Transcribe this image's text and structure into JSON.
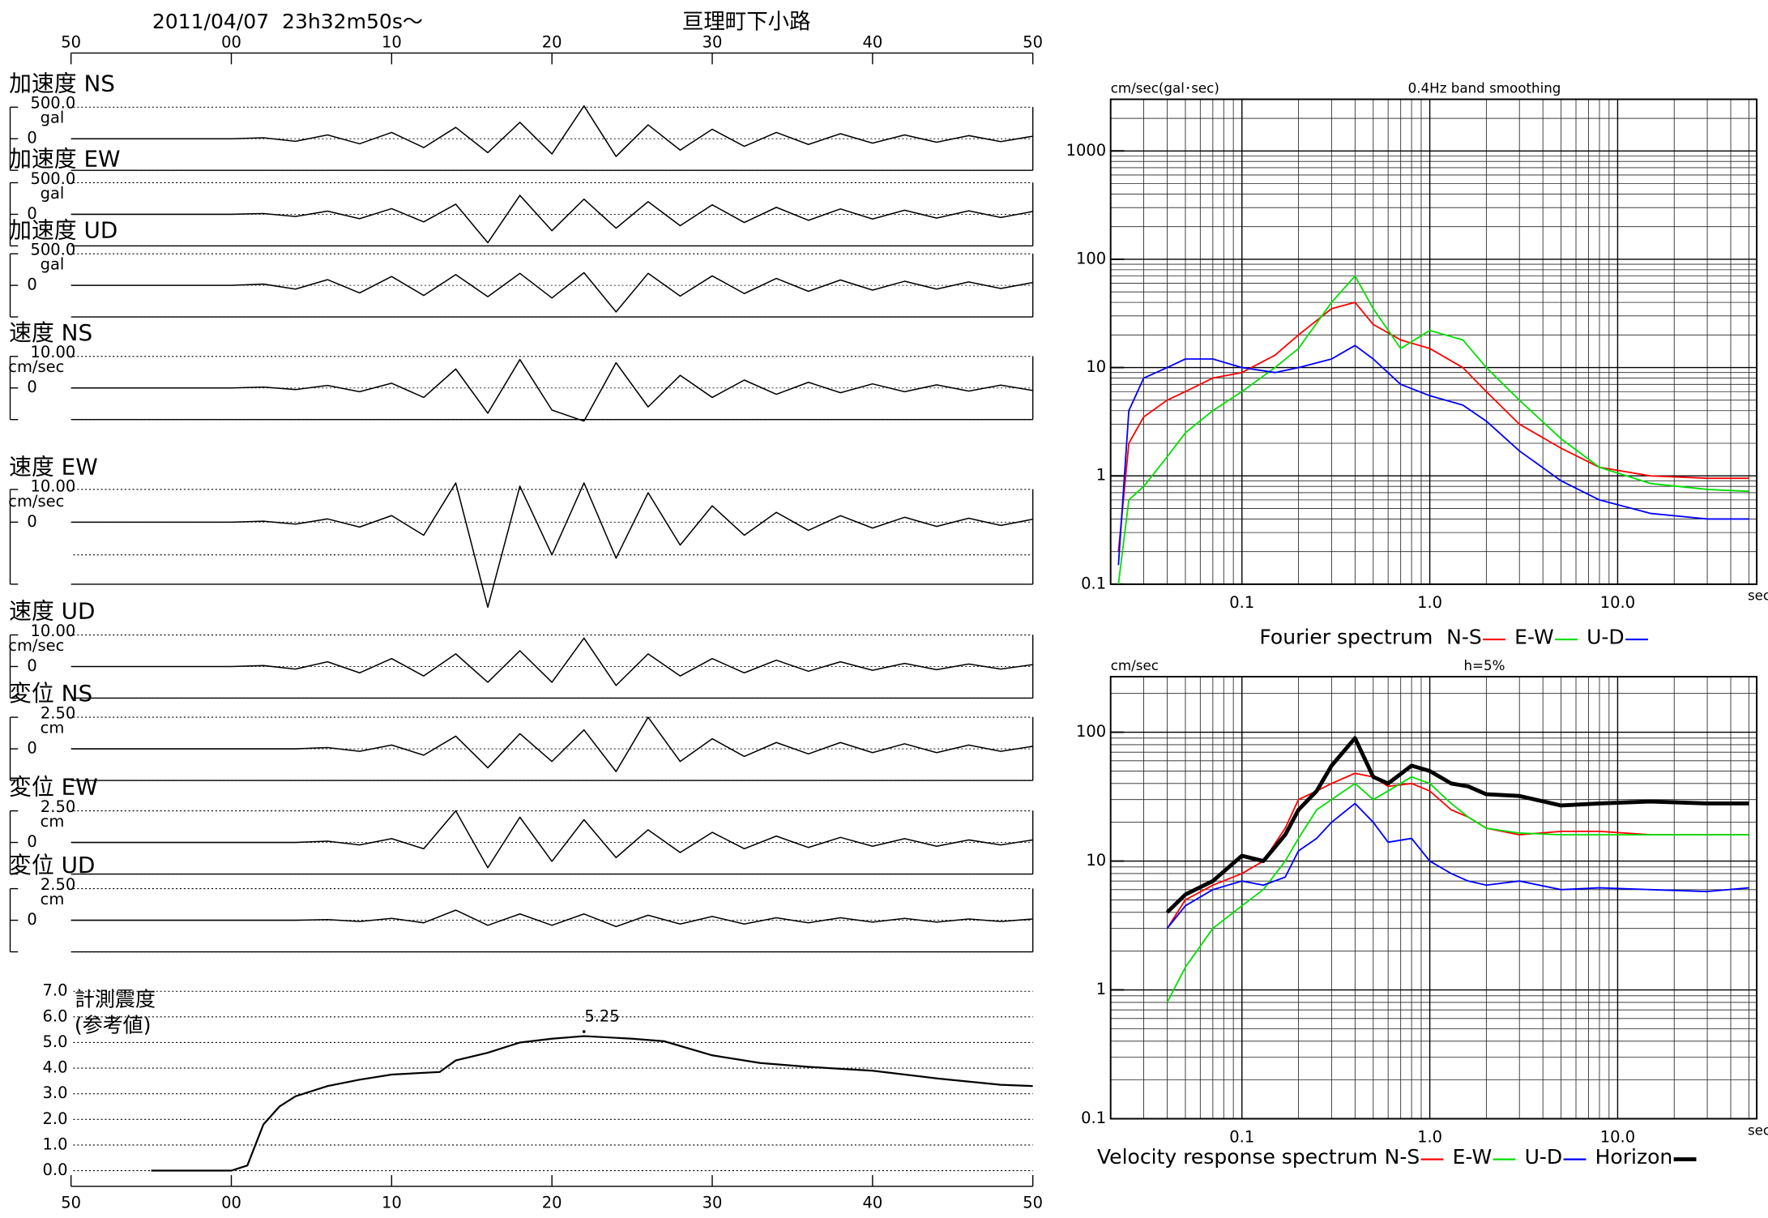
{
  "chart_data": [
    {
      "type": "waveform",
      "title": "2011/04/07  23h32m50s〜",
      "subtitle": "亘理町下小路",
      "xlim": [
        -10,
        50
      ],
      "xticks": [
        {
          "value": -10,
          "label": "50"
        },
        {
          "value": 0,
          "label": "00"
        },
        10,
        20,
        30,
        40,
        50
      ],
      "x": [
        -10,
        -8,
        -6,
        -4,
        -2,
        0,
        2,
        4,
        6,
        8,
        10,
        12,
        14,
        16,
        18,
        20,
        22,
        24,
        26,
        28,
        30,
        32,
        34,
        36,
        38,
        40,
        42,
        44,
        46,
        48,
        50
      ],
      "panels": [
        {
          "name": "加速度 NS",
          "unit": "gal",
          "yticks": [
            0,
            {
              "value": 500,
              "label": "500.0"
            }
          ],
          "values": [
            0,
            0,
            0,
            0,
            0,
            0,
            15,
            -40,
            60,
            -80,
            100,
            -140,
            180,
            -220,
            260,
            -240,
            520,
            -280,
            220,
            -180,
            150,
            -120,
            100,
            -90,
            80,
            -70,
            60,
            -55,
            50,
            -45,
            40
          ]
        },
        {
          "name": "加速度 EW",
          "unit": "gal",
          "yticks": [
            0,
            {
              "value": 500,
              "label": "500.0"
            }
          ],
          "values": [
            0,
            0,
            0,
            0,
            0,
            0,
            12,
            -35,
            50,
            -70,
            90,
            -120,
            160,
            -450,
            300,
            -260,
            240,
            -220,
            200,
            -180,
            150,
            -130,
            110,
            -95,
            85,
            -75,
            65,
            -60,
            55,
            -50,
            45
          ]
        },
        {
          "name": "加速度 UD",
          "unit": "gal",
          "yticks": [
            0,
            {
              "value": 500,
              "label": "500.0"
            }
          ],
          "values": [
            0,
            0,
            0,
            0,
            0,
            0,
            20,
            -60,
            90,
            -120,
            140,
            -160,
            170,
            -180,
            190,
            -200,
            200,
            -420,
            190,
            -170,
            150,
            -130,
            110,
            -95,
            85,
            -75,
            65,
            -60,
            55,
            -50,
            45
          ]
        },
        {
          "name": "速度 NS",
          "unit": "cm/sec",
          "yticks": [
            0,
            {
              "value": 10,
              "label": "10.00"
            }
          ],
          "values": [
            0,
            0,
            0,
            0,
            0,
            0,
            0.3,
            -0.5,
            0.8,
            -1.2,
            1.5,
            -3,
            6,
            -8,
            9,
            -7,
            -10.5,
            8,
            -6,
            4,
            -3,
            2.5,
            -2,
            1.8,
            -1.5,
            1.3,
            -1.2,
            1,
            -1,
            0.9,
            -0.8
          ]
        },
        {
          "name": "速度 EW",
          "unit": "cm/sec",
          "yticks": [
            0,
            {
              "value": 10,
              "label": "10.00"
            }
          ],
          "values": [
            0,
            0,
            0,
            0,
            0,
            0,
            0.3,
            -0.6,
            1,
            -1.5,
            2,
            -4,
            12,
            -26,
            11,
            -10,
            12,
            -11,
            9,
            -7,
            5,
            -4,
            3,
            -2.5,
            2,
            -1.8,
            1.5,
            -1.3,
            1.2,
            -1,
            0.9
          ]
        },
        {
          "name": "速度 UD",
          "unit": "cm/sec",
          "yticks": [
            0,
            {
              "value": 10,
              "label": "10.00"
            }
          ],
          "values": [
            0,
            0,
            0,
            0,
            0,
            0,
            0.3,
            -0.8,
            1.5,
            -2,
            2.5,
            -3,
            4,
            -5,
            5,
            -5,
            9,
            -6,
            4,
            -3,
            2.5,
            -2,
            2,
            -1.5,
            1.5,
            -1.2,
            1,
            -1,
            0.8,
            -0.8,
            0.6
          ]
        },
        {
          "name": "変位 NS",
          "unit": "cm",
          "yticks": [
            0,
            {
              "value": 2.5,
              "label": "2.50"
            }
          ],
          "values": [
            0,
            0,
            0,
            0,
            0,
            0,
            0,
            0,
            0.1,
            -0.2,
            0.3,
            -0.5,
            1,
            -1.5,
            1.2,
            -1,
            1.5,
            -1.8,
            2.5,
            -1,
            0.8,
            -0.6,
            0.5,
            -0.4,
            0.5,
            -0.3,
            0.4,
            -0.3,
            0.3,
            -0.2,
            0.2
          ]
        },
        {
          "name": "変位 EW",
          "unit": "cm",
          "yticks": [
            0,
            {
              "value": 2.5,
              "label": "2.50"
            }
          ],
          "values": [
            0,
            0,
            0,
            0,
            0,
            0,
            0,
            0,
            0.1,
            -0.2,
            0.3,
            -0.5,
            2.5,
            -2,
            2,
            -1.5,
            1.8,
            -1.2,
            1,
            -0.8,
            0.8,
            -0.5,
            0.5,
            -0.4,
            0.4,
            -0.3,
            0.3,
            -0.3,
            0.2,
            -0.2,
            0.2
          ]
        },
        {
          "name": "変位 UD",
          "unit": "cm",
          "yticks": [
            0,
            {
              "value": 2.5,
              "label": "2.50"
            }
          ],
          "values": [
            0,
            0,
            0,
            0,
            0,
            0,
            0,
            0,
            0.05,
            -0.1,
            0.15,
            -0.2,
            0.8,
            -0.4,
            0.5,
            -0.4,
            0.5,
            -0.5,
            0.4,
            -0.3,
            0.3,
            -0.3,
            0.2,
            -0.2,
            0.2,
            -0.15,
            0.15,
            -0.15,
            0.1,
            -0.1,
            0.1
          ]
        }
      ]
    },
    {
      "type": "line",
      "label": "計測震度",
      "sublabel": "(参考値)",
      "xlim": [
        -10,
        50
      ],
      "xticks": [
        {
          "value": -10,
          "label": "50"
        },
        {
          "value": 0,
          "label": "00"
        },
        10,
        20,
        30,
        40,
        50
      ],
      "ylim": [
        0,
        7
      ],
      "yticks": [
        {
          "value": 0,
          "label": "0.0"
        },
        {
          "value": 1,
          "label": "1.0"
        },
        {
          "value": 2,
          "label": "2.0"
        },
        {
          "value": 3,
          "label": "3.0"
        },
        {
          "value": 4,
          "label": "4.0"
        },
        {
          "value": 5,
          "label": "5.0"
        },
        {
          "value": 6,
          "label": "6.0"
        },
        {
          "value": 7,
          "label": "7.0"
        }
      ],
      "grid": true,
      "x": [
        -5,
        0,
        1,
        2,
        3,
        4,
        6,
        8,
        10,
        13,
        14,
        16,
        18,
        20,
        22,
        25,
        27,
        30,
        33,
        36,
        40,
        44,
        48,
        50
      ],
      "values": [
        0,
        0,
        0.2,
        1.8,
        2.5,
        2.9,
        3.3,
        3.55,
        3.75,
        3.85,
        4.3,
        4.6,
        5.0,
        5.15,
        5.25,
        5.15,
        5.05,
        4.5,
        4.2,
        4.05,
        3.9,
        3.6,
        3.35,
        3.3
      ],
      "peak": {
        "x": 22,
        "value": 5.25
      }
    },
    {
      "type": "line",
      "log": true,
      "ylabel": "cm/sec(gal･sec)",
      "title": "0.4Hz band smoothing",
      "caption": "Fourier spectrum",
      "xlabel": "sec",
      "xlim": [
        0.02,
        55
      ],
      "ylim": [
        0.1,
        3000
      ],
      "xticks": [
        0.1,
        {
          "value": 1,
          "label": "1.0"
        },
        {
          "value": 10,
          "label": "10.0"
        }
      ],
      "yticks": [
        0.1,
        1,
        10,
        100,
        1000
      ],
      "grid": true,
      "x": [
        0.022,
        0.025,
        0.03,
        0.04,
        0.05,
        0.07,
        0.1,
        0.15,
        0.2,
        0.3,
        0.4,
        0.5,
        0.7,
        1.0,
        1.5,
        2,
        3,
        5,
        8,
        15,
        30,
        50
      ],
      "series": [
        {
          "name": "N-S",
          "color": "#ff0000",
          "values": [
            0.2,
            2,
            3.5,
            5,
            6,
            8,
            9,
            13,
            20,
            35,
            40,
            25,
            18,
            15,
            10,
            6,
            3,
            1.8,
            1.2,
            1.0,
            0.95,
            0.95
          ]
        },
        {
          "name": "E-W",
          "color": "#00e000",
          "values": [
            0.1,
            0.6,
            0.8,
            1.5,
            2.5,
            4,
            6,
            10,
            15,
            40,
            70,
            35,
            15,
            22,
            18,
            10,
            5,
            2.2,
            1.2,
            0.85,
            0.75,
            0.72
          ]
        },
        {
          "name": "U-D",
          "color": "#0000ff",
          "values": [
            0.15,
            4,
            8,
            10,
            12,
            12,
            10,
            9,
            10,
            12,
            16,
            12,
            7,
            5.5,
            4.5,
            3.2,
            1.7,
            0.9,
            0.6,
            0.45,
            0.4,
            0.4
          ]
        }
      ]
    },
    {
      "type": "line",
      "log": true,
      "ylabel": "cm/sec",
      "title": "h=5%",
      "caption": "Velocity response spectrum",
      "xlabel": "sec",
      "xlim": [
        0.02,
        55
      ],
      "ylim": [
        0.1,
        270
      ],
      "xticks": [
        0.1,
        {
          "value": 1,
          "label": "1.0"
        },
        {
          "value": 10,
          "label": "10.0"
        }
      ],
      "yticks": [
        0.1,
        1,
        10,
        100
      ],
      "grid": true,
      "x": [
        0.04,
        0.05,
        0.07,
        0.1,
        0.13,
        0.17,
        0.2,
        0.25,
        0.3,
        0.4,
        0.5,
        0.6,
        0.8,
        1.0,
        1.3,
        1.6,
        2,
        3,
        5,
        8,
        15,
        30,
        50
      ],
      "series": [
        {
          "name": "N-S",
          "color": "#ff0000",
          "values": [
            3,
            5,
            6.5,
            8,
            10,
            18,
            30,
            35,
            40,
            48,
            45,
            38,
            40,
            35,
            25,
            22,
            18,
            16,
            17,
            17,
            16,
            16,
            16
          ]
        },
        {
          "name": "E-W",
          "color": "#00e000",
          "values": [
            0.8,
            1.5,
            3,
            4.5,
            6,
            10,
            15,
            25,
            30,
            40,
            30,
            35,
            45,
            40,
            28,
            22,
            18,
            16.5,
            16,
            16,
            16,
            16,
            16
          ]
        },
        {
          "name": "U-D",
          "color": "#0000ff",
          "values": [
            3,
            4.5,
            6,
            7,
            6.5,
            7.5,
            12,
            15,
            20,
            28,
            20,
            14,
            15,
            10,
            8,
            7,
            6.5,
            7,
            6,
            6.2,
            6,
            5.8,
            6.2
          ]
        },
        {
          "name": "Horizon",
          "color": "#000000",
          "values": [
            4,
            5.5,
            7,
            11,
            10,
            16,
            25,
            35,
            55,
            90,
            45,
            40,
            55,
            50,
            40,
            38,
            33,
            32,
            27,
            28,
            29,
            28,
            28
          ]
        }
      ]
    }
  ]
}
